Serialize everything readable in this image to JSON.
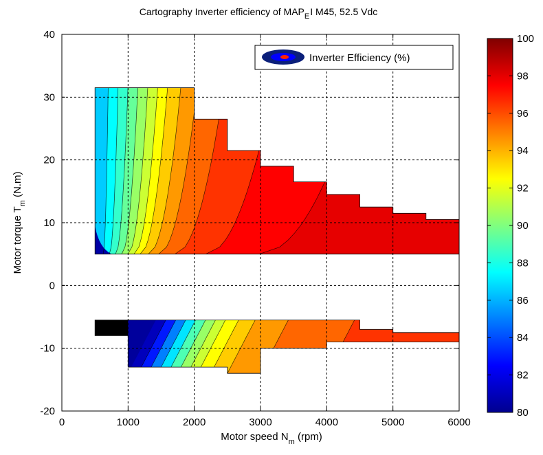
{
  "chart_data": {
    "type": "heatmap",
    "title": "Cartography Inverter efficiency of MAP",
    "title_subscript": "E",
    "title_suffix": "I M45, 52.5 Vdc",
    "xlabel": "Motor speed N",
    "xlabel_subscript": "m",
    "xlabel_suffix": " (rpm)",
    "ylabel": "Motor torque T",
    "ylabel_subscript": "m",
    "ylabel_suffix": " (N.m)",
    "xlim": [
      0,
      6000
    ],
    "ylim": [
      -20,
      40
    ],
    "x_ticks": [
      "0",
      "1000",
      "2000",
      "3000",
      "4000",
      "5000",
      "6000"
    ],
    "y_ticks": [
      "-20",
      "-10",
      "0",
      "10",
      "20",
      "30",
      "40"
    ],
    "grid": true,
    "legend": {
      "label": "Inverter Efficiency (%)",
      "position": "top-right"
    },
    "colorbar": {
      "range": [
        80,
        100
      ],
      "ticks": [
        "80",
        "82",
        "84",
        "86",
        "88",
        "90",
        "92",
        "94",
        "96",
        "98",
        "100"
      ]
    },
    "motoring_region": {
      "torque_min": 5,
      "envelope": [
        [
          500,
          31.5
        ],
        [
          2000,
          31.5
        ],
        [
          2000,
          26.5
        ],
        [
          2500,
          26.5
        ],
        [
          2500,
          21.5
        ],
        [
          3000,
          21.5
        ],
        [
          3000,
          19
        ],
        [
          3500,
          19
        ],
        [
          3500,
          16.5
        ],
        [
          4000,
          16.5
        ],
        [
          4000,
          14.5
        ],
        [
          4500,
          14.5
        ],
        [
          4500,
          12.5
        ],
        [
          5000,
          12.5
        ],
        [
          5000,
          11.5
        ],
        [
          5500,
          11.5
        ],
        [
          5500,
          10.5
        ],
        [
          6000,
          10.5
        ],
        [
          6000,
          5
        ],
        [
          500,
          5
        ]
      ],
      "efficiency_bands": [
        {
          "efficiency": 86.5,
          "boundary_speed": 700
        },
        {
          "efficiency": 87.5,
          "boundary_speed": 850
        },
        {
          "efficiency": 88.5,
          "boundary_speed": 1000
        },
        {
          "efficiency": 89.5,
          "boundary_speed": 1150
        },
        {
          "efficiency": 90.5,
          "boundary_speed": 1300
        },
        {
          "efficiency": 91.5,
          "boundary_speed": 1450
        },
        {
          "efficiency": 92.5,
          "boundary_speed": 1600
        },
        {
          "efficiency": 93.5,
          "boundary_speed": 1800
        },
        {
          "efficiency": 94.5,
          "boundary_speed": 2050
        },
        {
          "efficiency": 95.5,
          "boundary_speed": 2450
        },
        {
          "efficiency": 96.5,
          "boundary_speed": 3200
        },
        {
          "efficiency": 97.5,
          "boundary_speed": 4500
        },
        {
          "efficiency": 98,
          "boundary_speed": 6000
        }
      ]
    },
    "generating_region": {
      "envelope": [
        [
          500,
          -5.5
        ],
        [
          4500,
          -5.5
        ],
        [
          4500,
          -7
        ],
        [
          5000,
          -7
        ],
        [
          5000,
          -7.5
        ],
        [
          6000,
          -7.5
        ],
        [
          6000,
          -9
        ],
        [
          4000,
          -9
        ],
        [
          4000,
          -10
        ],
        [
          3000,
          -10
        ],
        [
          3000,
          -14
        ],
        [
          2500,
          -14
        ],
        [
          2500,
          -13
        ],
        [
          1000,
          -13
        ],
        [
          1000,
          -8
        ],
        [
          500,
          -8
        ]
      ],
      "low_speed_block": {
        "speed_range": [
          500,
          1000
        ],
        "torque_range": [
          -8,
          -5.5
        ],
        "efficiency": 80
      },
      "efficiency_bands": [
        {
          "efficiency": 81,
          "boundary_speed": 1150
        },
        {
          "efficiency": 83,
          "boundary_speed": 1300
        },
        {
          "efficiency": 85,
          "boundary_speed": 1450
        },
        {
          "efficiency": 87,
          "boundary_speed": 1600
        },
        {
          "efficiency": 89,
          "boundary_speed": 1750
        },
        {
          "efficiency": 90.5,
          "boundary_speed": 1900
        },
        {
          "efficiency": 91.5,
          "boundary_speed": 2050
        },
        {
          "efficiency": 92.5,
          "boundary_speed": 2250
        },
        {
          "efficiency": 93.5,
          "boundary_speed": 2500
        },
        {
          "efficiency": 94.5,
          "boundary_speed": 3000
        },
        {
          "efficiency": 95.5,
          "boundary_speed": 4000
        },
        {
          "efficiency": 96.5,
          "boundary_speed": 6000
        }
      ]
    }
  }
}
